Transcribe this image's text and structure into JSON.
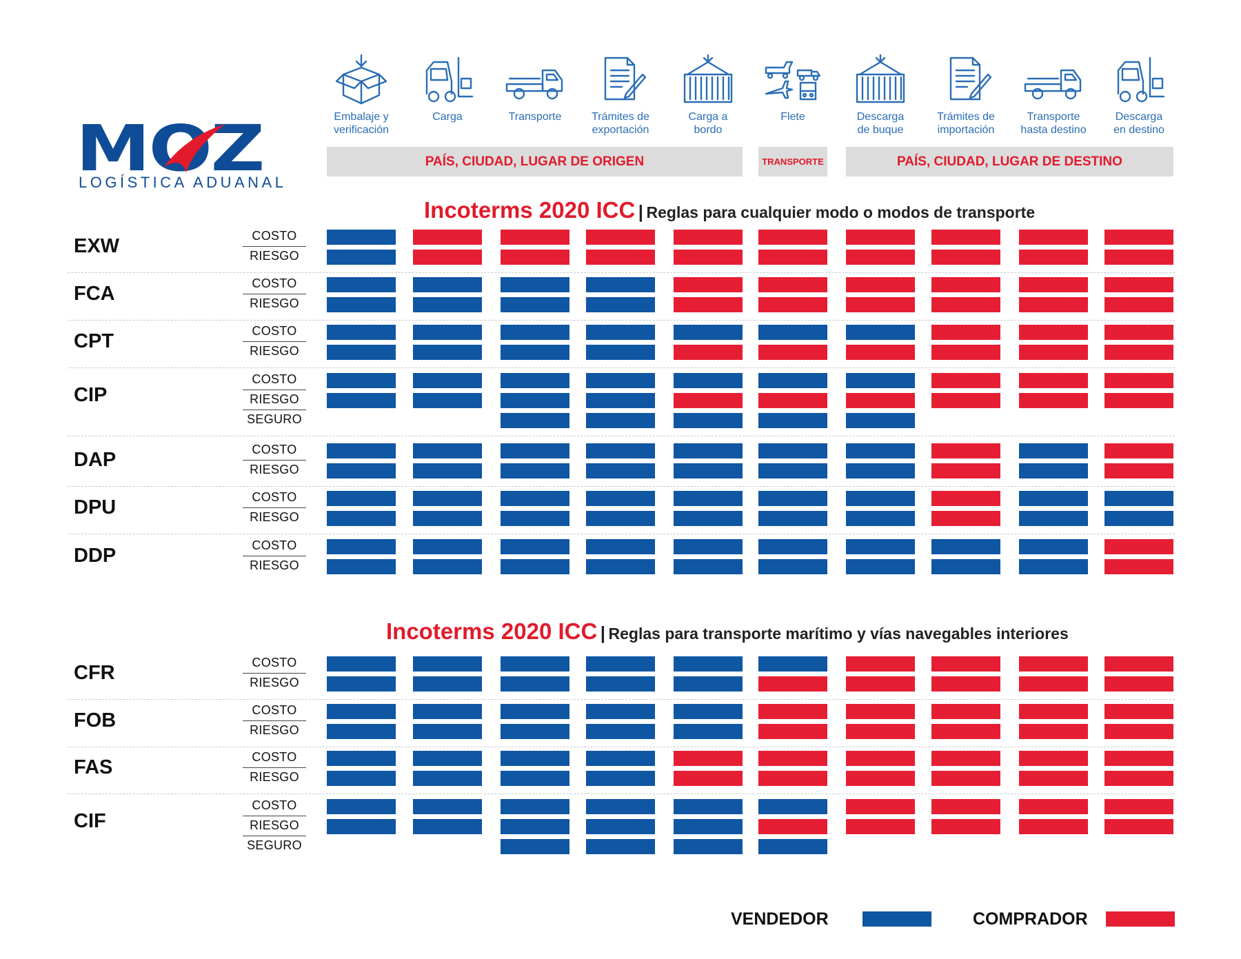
{
  "brand": {
    "name": "MOZ",
    "tagline": "LOGÍSTICA ADUANAL",
    "primary_color": "#0f4c97",
    "accent_color": "#e11b2b"
  },
  "steps": [
    {
      "label": "Embalaje y\nverificación",
      "icon": "package-icon"
    },
    {
      "label": "Carga",
      "icon": "forklift-icon"
    },
    {
      "label": "Transporte",
      "icon": "truck-icon"
    },
    {
      "label": "Trámites de\nexportación",
      "icon": "document-icon"
    },
    {
      "label": "Carga a\nbordo",
      "icon": "container-icon"
    },
    {
      "label": "Flete",
      "icon": "multimodal-transport-icon"
    },
    {
      "label": "Descarga\nde buque",
      "icon": "container-icon"
    },
    {
      "label": "Trámites de\nimportación",
      "icon": "document-icon"
    },
    {
      "label": "Transporte\nhasta destino",
      "icon": "truck-icon"
    },
    {
      "label": "Descarga\nen destino",
      "icon": "forklift-icon"
    }
  ],
  "bands": {
    "origin": "PAÍS, CIUDAD, LUGAR DE ORIGEN",
    "transport": "TRANSPORTE",
    "destination": "PAÍS, CIUDAD, LUGAR DE DESTINO"
  },
  "sections": [
    {
      "title_red": "Incoterms 2020 ICC",
      "separator": "|",
      "title_black": "Reglas para cualquier modo o modos de transporte",
      "terms": [
        {
          "name": "EXW",
          "rows": [
            {
              "label": "COSTO",
              "cells": [
                "V",
                "C",
                "C",
                "C",
                "C",
                "C",
                "C",
                "C",
                "C",
                "C"
              ]
            },
            {
              "label": "RIESGO",
              "cells": [
                "V",
                "C",
                "C",
                "C",
                "C",
                "C",
                "C",
                "C",
                "C",
                "C"
              ]
            }
          ]
        },
        {
          "name": "FCA",
          "rows": [
            {
              "label": "COSTO",
              "cells": [
                "V",
                "V",
                "V",
                "V",
                "C",
                "C",
                "C",
                "C",
                "C",
                "C"
              ]
            },
            {
              "label": "RIESGO",
              "cells": [
                "V",
                "V",
                "V",
                "V",
                "C",
                "C",
                "C",
                "C",
                "C",
                "C"
              ]
            }
          ]
        },
        {
          "name": "CPT",
          "rows": [
            {
              "label": "COSTO",
              "cells": [
                "V",
                "V",
                "V",
                "V",
                "V",
                "V",
                "V",
                "C",
                "C",
                "C"
              ]
            },
            {
              "label": "RIESGO",
              "cells": [
                "V",
                "V",
                "V",
                "V",
                "C",
                "C",
                "C",
                "C",
                "C",
                "C"
              ]
            }
          ]
        },
        {
          "name": "CIP",
          "rows": [
            {
              "label": "COSTO",
              "cells": [
                "V",
                "V",
                "V",
                "V",
                "V",
                "V",
                "V",
                "C",
                "C",
                "C"
              ]
            },
            {
              "label": "RIESGO",
              "cells": [
                "V",
                "V",
                "V",
                "V",
                "C",
                "C",
                "C",
                "C",
                "C",
                "C"
              ]
            },
            {
              "label": "SEGURO",
              "cells": [
                "",
                "",
                "V",
                "V",
                "V",
                "V",
                "V",
                "",
                "",
                ""
              ]
            }
          ]
        },
        {
          "name": "DAP",
          "rows": [
            {
              "label": "COSTO",
              "cells": [
                "V",
                "V",
                "V",
                "V",
                "V",
                "V",
                "V",
                "C",
                "V",
                "C"
              ]
            },
            {
              "label": "RIESGO",
              "cells": [
                "V",
                "V",
                "V",
                "V",
                "V",
                "V",
                "V",
                "C",
                "V",
                "C"
              ]
            }
          ]
        },
        {
          "name": "DPU",
          "rows": [
            {
              "label": "COSTO",
              "cells": [
                "V",
                "V",
                "V",
                "V",
                "V",
                "V",
                "V",
                "C",
                "V",
                "V"
              ]
            },
            {
              "label": "RIESGO",
              "cells": [
                "V",
                "V",
                "V",
                "V",
                "V",
                "V",
                "V",
                "C",
                "V",
                "V"
              ]
            }
          ]
        },
        {
          "name": "DDP",
          "rows": [
            {
              "label": "COSTO",
              "cells": [
                "V",
                "V",
                "V",
                "V",
                "V",
                "V",
                "V",
                "V",
                "V",
                "C"
              ]
            },
            {
              "label": "RIESGO",
              "cells": [
                "V",
                "V",
                "V",
                "V",
                "V",
                "V",
                "V",
                "V",
                "V",
                "C"
              ]
            }
          ]
        }
      ]
    },
    {
      "title_red": "Incoterms 2020 ICC",
      "separator": "|",
      "title_black": "Reglas para transporte marítimo y vías navegables interiores",
      "terms": [
        {
          "name": "CFR",
          "rows": [
            {
              "label": "COSTO",
              "cells": [
                "V",
                "V",
                "V",
                "V",
                "V",
                "V",
                "C",
                "C",
                "C",
                "C"
              ]
            },
            {
              "label": "RIESGO",
              "cells": [
                "V",
                "V",
                "V",
                "V",
                "V",
                "C",
                "C",
                "C",
                "C",
                "C"
              ]
            }
          ]
        },
        {
          "name": "FOB",
          "rows": [
            {
              "label": "COSTO",
              "cells": [
                "V",
                "V",
                "V",
                "V",
                "V",
                "C",
                "C",
                "C",
                "C",
                "C"
              ]
            },
            {
              "label": "RIESGO",
              "cells": [
                "V",
                "V",
                "V",
                "V",
                "V",
                "C",
                "C",
                "C",
                "C",
                "C"
              ]
            }
          ]
        },
        {
          "name": "FAS",
          "rows": [
            {
              "label": "COSTO",
              "cells": [
                "V",
                "V",
                "V",
                "V",
                "C",
                "C",
                "C",
                "C",
                "C",
                "C"
              ]
            },
            {
              "label": "RIESGO",
              "cells": [
                "V",
                "V",
                "V",
                "V",
                "C",
                "C",
                "C",
                "C",
                "C",
                "C"
              ]
            }
          ]
        },
        {
          "name": "CIF",
          "rows": [
            {
              "label": "COSTO",
              "cells": [
                "V",
                "V",
                "V",
                "V",
                "V",
                "V",
                "C",
                "C",
                "C",
                "C"
              ]
            },
            {
              "label": "RIESGO",
              "cells": [
                "V",
                "V",
                "V",
                "V",
                "V",
                "C",
                "C",
                "C",
                "C",
                "C"
              ]
            },
            {
              "label": "SEGURO",
              "cells": [
                "",
                "",
                "V",
                "V",
                "V",
                "V",
                "",
                "",
                "",
                ""
              ]
            }
          ]
        }
      ]
    }
  ],
  "legend": {
    "seller": {
      "label": "VENDEDOR",
      "color": "#0f56a3"
    },
    "buyer": {
      "label": "COMPRADOR",
      "color": "#e61e34"
    }
  }
}
